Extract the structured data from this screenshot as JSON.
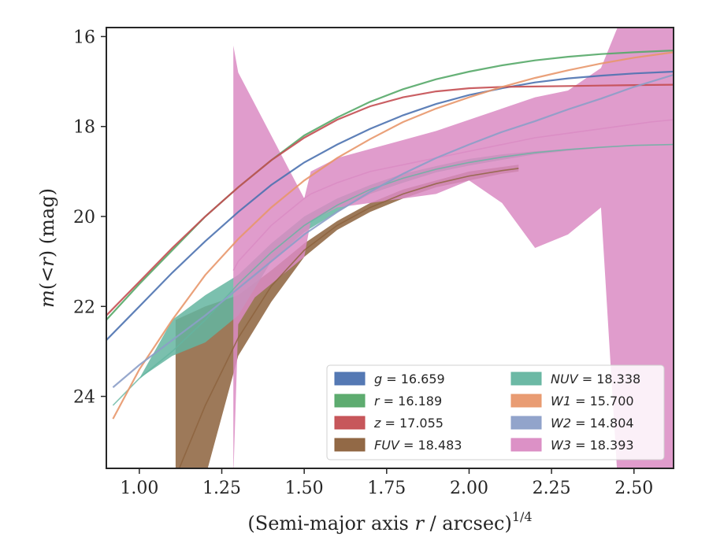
{
  "chart_data": {
    "type": "line",
    "xlabel": "(Semi-major axis r / arcsec)",
    "xlabel_italic": "r",
    "xlabel_exponent": "1/4",
    "ylabel": "m(<r) (mag)",
    "xlim": [
      0.9,
      2.62
    ],
    "ylim": [
      25.6,
      15.8
    ],
    "y_inverted": true,
    "x_ticks": [
      1.0,
      1.25,
      1.5,
      1.75,
      2.0,
      2.25,
      2.5
    ],
    "x_tick_labels": [
      "1.00",
      "1.25",
      "1.50",
      "1.75",
      "2.00",
      "2.25",
      "2.50"
    ],
    "y_ticks": [
      16,
      18,
      20,
      22,
      24
    ],
    "y_tick_labels": [
      "16",
      "18",
      "20",
      "22",
      "24"
    ],
    "legend_placement": "lower-right",
    "series": [
      {
        "name": "g = 16.659",
        "band": "g",
        "total": "16.659",
        "color": "#4c72b0",
        "kind": "line",
        "x": [
          0.9,
          1.0,
          1.1,
          1.2,
          1.3,
          1.4,
          1.5,
          1.6,
          1.7,
          1.8,
          1.9,
          2.0,
          2.1,
          2.2,
          2.3,
          2.4,
          2.5,
          2.62
        ],
        "y": [
          22.75,
          22.0,
          21.25,
          20.55,
          19.9,
          19.3,
          18.8,
          18.4,
          18.05,
          17.75,
          17.5,
          17.3,
          17.15,
          17.02,
          16.93,
          16.87,
          16.82,
          16.78
        ]
      },
      {
        "name": "r = 16.189",
        "band": "r",
        "total": "16.189",
        "color": "#55a868",
        "kind": "line",
        "x": [
          0.9,
          1.0,
          1.1,
          1.2,
          1.3,
          1.4,
          1.5,
          1.6,
          1.7,
          1.8,
          1.9,
          2.0,
          2.1,
          2.2,
          2.3,
          2.4,
          2.5,
          2.62
        ],
        "y": [
          22.3,
          21.5,
          20.75,
          20.0,
          19.35,
          18.75,
          18.2,
          17.8,
          17.45,
          17.17,
          16.95,
          16.78,
          16.64,
          16.53,
          16.45,
          16.39,
          16.35,
          16.31
        ]
      },
      {
        "name": "z = 17.055",
        "band": "z",
        "total": "17.055",
        "color": "#c44e52",
        "kind": "line",
        "x": [
          0.9,
          1.0,
          1.1,
          1.2,
          1.3,
          1.4,
          1.5,
          1.6,
          1.7,
          1.8,
          1.9,
          2.0,
          2.1,
          2.2,
          2.3,
          2.4,
          2.5,
          2.62
        ],
        "y": [
          22.2,
          21.45,
          20.7,
          20.0,
          19.35,
          18.75,
          18.25,
          17.85,
          17.55,
          17.35,
          17.22,
          17.15,
          17.12,
          17.11,
          17.1,
          17.09,
          17.08,
          17.07
        ]
      },
      {
        "name": "FUV = 18.483",
        "band": "FUV",
        "total": "18.483",
        "color": "#8c613c",
        "kind": "band",
        "x": [
          1.11,
          1.2,
          1.3,
          1.4,
          1.5,
          1.6,
          1.7,
          1.8,
          1.9,
          2.0,
          2.1,
          2.15
        ],
        "y": [
          25.8,
          24.2,
          22.7,
          21.55,
          20.75,
          20.2,
          19.8,
          19.5,
          19.27,
          19.1,
          18.98,
          18.93
        ],
        "lower": [
          22.3,
          22.0,
          21.75,
          21.2,
          20.6,
          20.1,
          19.7,
          19.4,
          19.2,
          19.0,
          18.9,
          18.85
        ],
        "upper": [
          25.8,
          25.8,
          23.1,
          21.9,
          20.9,
          20.3,
          19.9,
          19.6,
          19.35,
          19.2,
          19.05,
          19.0
        ]
      },
      {
        "name": "NUV = 18.338",
        "band": "NUV",
        "total": "18.338",
        "color": "#64b5a0",
        "kind": "band",
        "x": [
          0.92,
          1.0,
          1.1,
          1.2,
          1.3,
          1.4,
          1.5,
          1.6,
          1.7,
          1.8,
          1.9,
          2.0,
          2.1,
          2.2,
          2.3,
          2.4,
          2.5,
          2.62
        ],
        "y": [
          24.2,
          23.6,
          23.0,
          22.3,
          21.5,
          20.8,
          20.2,
          19.75,
          19.4,
          19.15,
          18.95,
          18.8,
          18.68,
          18.58,
          18.51,
          18.46,
          18.42,
          18.4
        ],
        "lower": [
          24.2,
          23.6,
          22.3,
          21.75,
          21.3,
          20.6,
          20.0,
          19.6,
          19.3,
          19.05,
          18.88,
          18.72,
          18.62,
          18.55,
          18.5,
          18.46,
          18.42,
          18.4
        ],
        "upper": [
          24.2,
          23.6,
          23.1,
          22.8,
          22.2,
          21.0,
          20.35,
          19.9,
          19.5,
          19.25,
          19.02,
          18.87,
          18.74,
          18.62,
          18.54,
          18.48,
          18.43,
          18.4
        ]
      },
      {
        "name": "W1 = 15.700",
        "band": "W1",
        "total": "15.700",
        "color": "#e8976b",
        "kind": "line",
        "x": [
          0.92,
          1.0,
          1.1,
          1.2,
          1.3,
          1.4,
          1.5,
          1.6,
          1.7,
          1.8,
          1.9,
          2.0,
          2.1,
          2.2,
          2.3,
          2.4,
          2.5,
          2.62
        ],
        "y": [
          24.5,
          23.4,
          22.3,
          21.3,
          20.5,
          19.8,
          19.2,
          18.7,
          18.28,
          17.9,
          17.6,
          17.35,
          17.12,
          16.92,
          16.75,
          16.6,
          16.47,
          16.35
        ]
      },
      {
        "name": "W2 = 14.804",
        "band": "W2",
        "total": "14.804",
        "color": "#8c9fc8",
        "kind": "line",
        "x": [
          0.92,
          1.0,
          1.1,
          1.2,
          1.3,
          1.4,
          1.5,
          1.6,
          1.7,
          1.8,
          1.9,
          2.0,
          2.1,
          2.2,
          2.3,
          2.4,
          2.5,
          2.62
        ],
        "y": [
          23.8,
          23.3,
          22.75,
          22.2,
          21.6,
          21.0,
          20.4,
          19.9,
          19.45,
          19.05,
          18.7,
          18.4,
          18.12,
          17.88,
          17.62,
          17.38,
          17.12,
          16.85
        ]
      },
      {
        "name": "W3 = 18.393",
        "band": "W3",
        "total": "18.393",
        "color": "#da8bc3",
        "kind": "band",
        "x": [
          1.285,
          1.3,
          1.35,
          1.4,
          1.45,
          1.5,
          1.52,
          1.6,
          1.7,
          1.8,
          1.9,
          2.0,
          2.1,
          2.2,
          2.3,
          2.4,
          2.45,
          2.5,
          2.55,
          2.62
        ],
        "y": [
          21.2,
          21.0,
          20.6,
          20.2,
          19.9,
          19.6,
          19.5,
          19.25,
          19.0,
          18.85,
          18.7,
          18.55,
          18.4,
          18.25,
          18.15,
          18.05,
          18.0,
          17.95,
          17.9,
          17.85
        ],
        "lower": [
          16.2,
          16.8,
          17.5,
          18.2,
          18.9,
          19.6,
          19.0,
          18.7,
          18.5,
          18.3,
          18.1,
          17.85,
          17.6,
          17.35,
          17.2,
          16.7,
          15.8,
          15.8,
          15.8,
          15.8
        ],
        "upper": [
          25.8,
          22.4,
          21.8,
          21.5,
          21.2,
          20.9,
          20.1,
          19.8,
          19.7,
          19.6,
          19.5,
          19.2,
          19.7,
          20.7,
          20.4,
          19.8,
          25.8,
          25.8,
          25.8,
          25.8
        ]
      }
    ]
  }
}
